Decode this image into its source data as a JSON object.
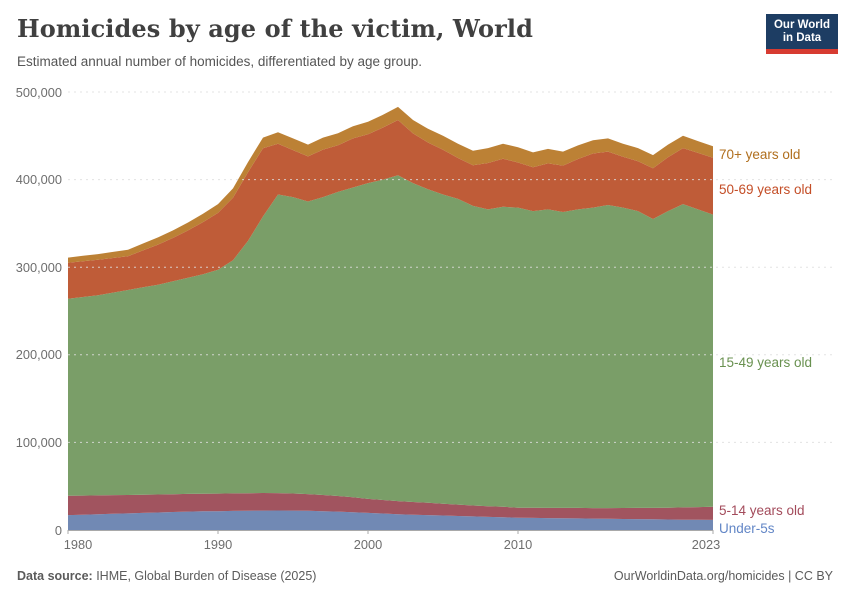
{
  "header": {
    "title": "Homicides by age of the victim, World",
    "subtitle": "Estimated annual number of homicides, differentiated by age group.",
    "logo_line1": "Our World",
    "logo_line2": "in Data",
    "logo_bg": "#1d3d63",
    "logo_stripe": "#d73b31"
  },
  "footer": {
    "source_label": "Data source:",
    "source_text": " IHME, Global Burden of Disease (2025)",
    "attribution": "OurWorldinData.org/homicides | CC BY"
  },
  "chart_data": {
    "type": "area",
    "stacked": true,
    "title": "Homicides by age of the victim, World",
    "xlabel": "",
    "ylabel": "Estimated annual number of homicides",
    "ylim": [
      0,
      500000
    ],
    "yticks": [
      0,
      100000,
      200000,
      300000,
      400000,
      500000
    ],
    "ytick_labels": [
      "0",
      "100,000",
      "200,000",
      "300,000",
      "400,000",
      "500,000"
    ],
    "xticks": [
      1980,
      1990,
      2000,
      2010,
      2023
    ],
    "grid": "horizontal-dashed",
    "legend_position": "right-inline",
    "x": [
      1980,
      1981,
      1982,
      1983,
      1984,
      1985,
      1986,
      1987,
      1988,
      1989,
      1990,
      1991,
      1992,
      1993,
      1994,
      1995,
      1996,
      1997,
      1998,
      1999,
      2000,
      2001,
      2002,
      2003,
      2004,
      2005,
      2006,
      2007,
      2008,
      2009,
      2010,
      2011,
      2012,
      2013,
      2014,
      2015,
      2016,
      2017,
      2018,
      2019,
      2020,
      2021,
      2022,
      2023
    ],
    "series": [
      {
        "name": "Under-5s",
        "color": "#7189b4",
        "label_color": "#6286c6",
        "values": [
          17000,
          17500,
          18000,
          18500,
          19000,
          19500,
          20000,
          20500,
          21000,
          21300,
          21500,
          21800,
          22000,
          22200,
          22300,
          22200,
          22000,
          21500,
          21000,
          20300,
          19500,
          18800,
          18000,
          17500,
          17000,
          16500,
          16000,
          15500,
          15000,
          14500,
          14000,
          13800,
          13600,
          13400,
          13200,
          13000,
          12800,
          12600,
          12400,
          12200,
          12000,
          11800,
          11600,
          11500
        ]
      },
      {
        "name": "5-14 years old",
        "color": "#a1545f",
        "label_color": "#a34b5b",
        "values": [
          22000,
          21800,
          21500,
          21300,
          21000,
          20800,
          20500,
          20300,
          20200,
          20100,
          20000,
          20000,
          20000,
          20000,
          19800,
          19500,
          19000,
          18500,
          17800,
          17000,
          16000,
          15500,
          15000,
          14500,
          14000,
          13500,
          13000,
          12500,
          12200,
          12000,
          11500,
          11500,
          11600,
          11800,
          12000,
          12000,
          12200,
          12500,
          12800,
          13000,
          13500,
          14000,
          14500,
          15000
        ]
      },
      {
        "name": "15-49 years old",
        "color": "#7a9e68",
        "label_color": "#699150",
        "values": [
          225000,
          226700,
          228500,
          231200,
          234000,
          236700,
          239500,
          243200,
          246800,
          250600,
          255500,
          266200,
          288000,
          315800,
          340900,
          338300,
          334000,
          340000,
          347200,
          353700,
          360500,
          365700,
          372000,
          364000,
          358000,
          353000,
          349000,
          342000,
          338800,
          342500,
          342500,
          338700,
          340800,
          337800,
          340800,
          343000,
          346000,
          342900,
          338800,
          329800,
          338500,
          346200,
          339900,
          333500
        ]
      },
      {
        "name": "50-69 years old",
        "color": "#bf5c38",
        "label_color": "#c44e27",
        "values": [
          41000,
          40700,
          40400,
          39500,
          38600,
          42200,
          45800,
          49400,
          54000,
          59500,
          65000,
          71300,
          78500,
          77700,
          58000,
          53700,
          51500,
          54300,
          53100,
          56000,
          55800,
          59500,
          63000,
          56700,
          53300,
          51000,
          46700,
          46400,
          53000,
          54700,
          51500,
          50000,
          52500,
          53000,
          57500,
          61800,
          61000,
          58000,
          57000,
          58000,
          61500,
          64000,
          64500,
          65000
        ]
      },
      {
        "name": "70+ years old",
        "color": "#bc8135",
        "label_color": "#b06f1e",
        "values": [
          6000,
          6300,
          6600,
          7000,
          7400,
          7800,
          8200,
          8600,
          9000,
          9500,
          10000,
          10700,
          11500,
          12300,
          13000,
          13300,
          13500,
          13700,
          13900,
          14000,
          14200,
          14500,
          15000,
          15300,
          15700,
          16000,
          16300,
          16600,
          17000,
          17300,
          17500,
          17000,
          16500,
          16000,
          15500,
          15200,
          15000,
          15000,
          15000,
          15000,
          14500,
          14000,
          13500,
          13000
        ]
      }
    ]
  }
}
